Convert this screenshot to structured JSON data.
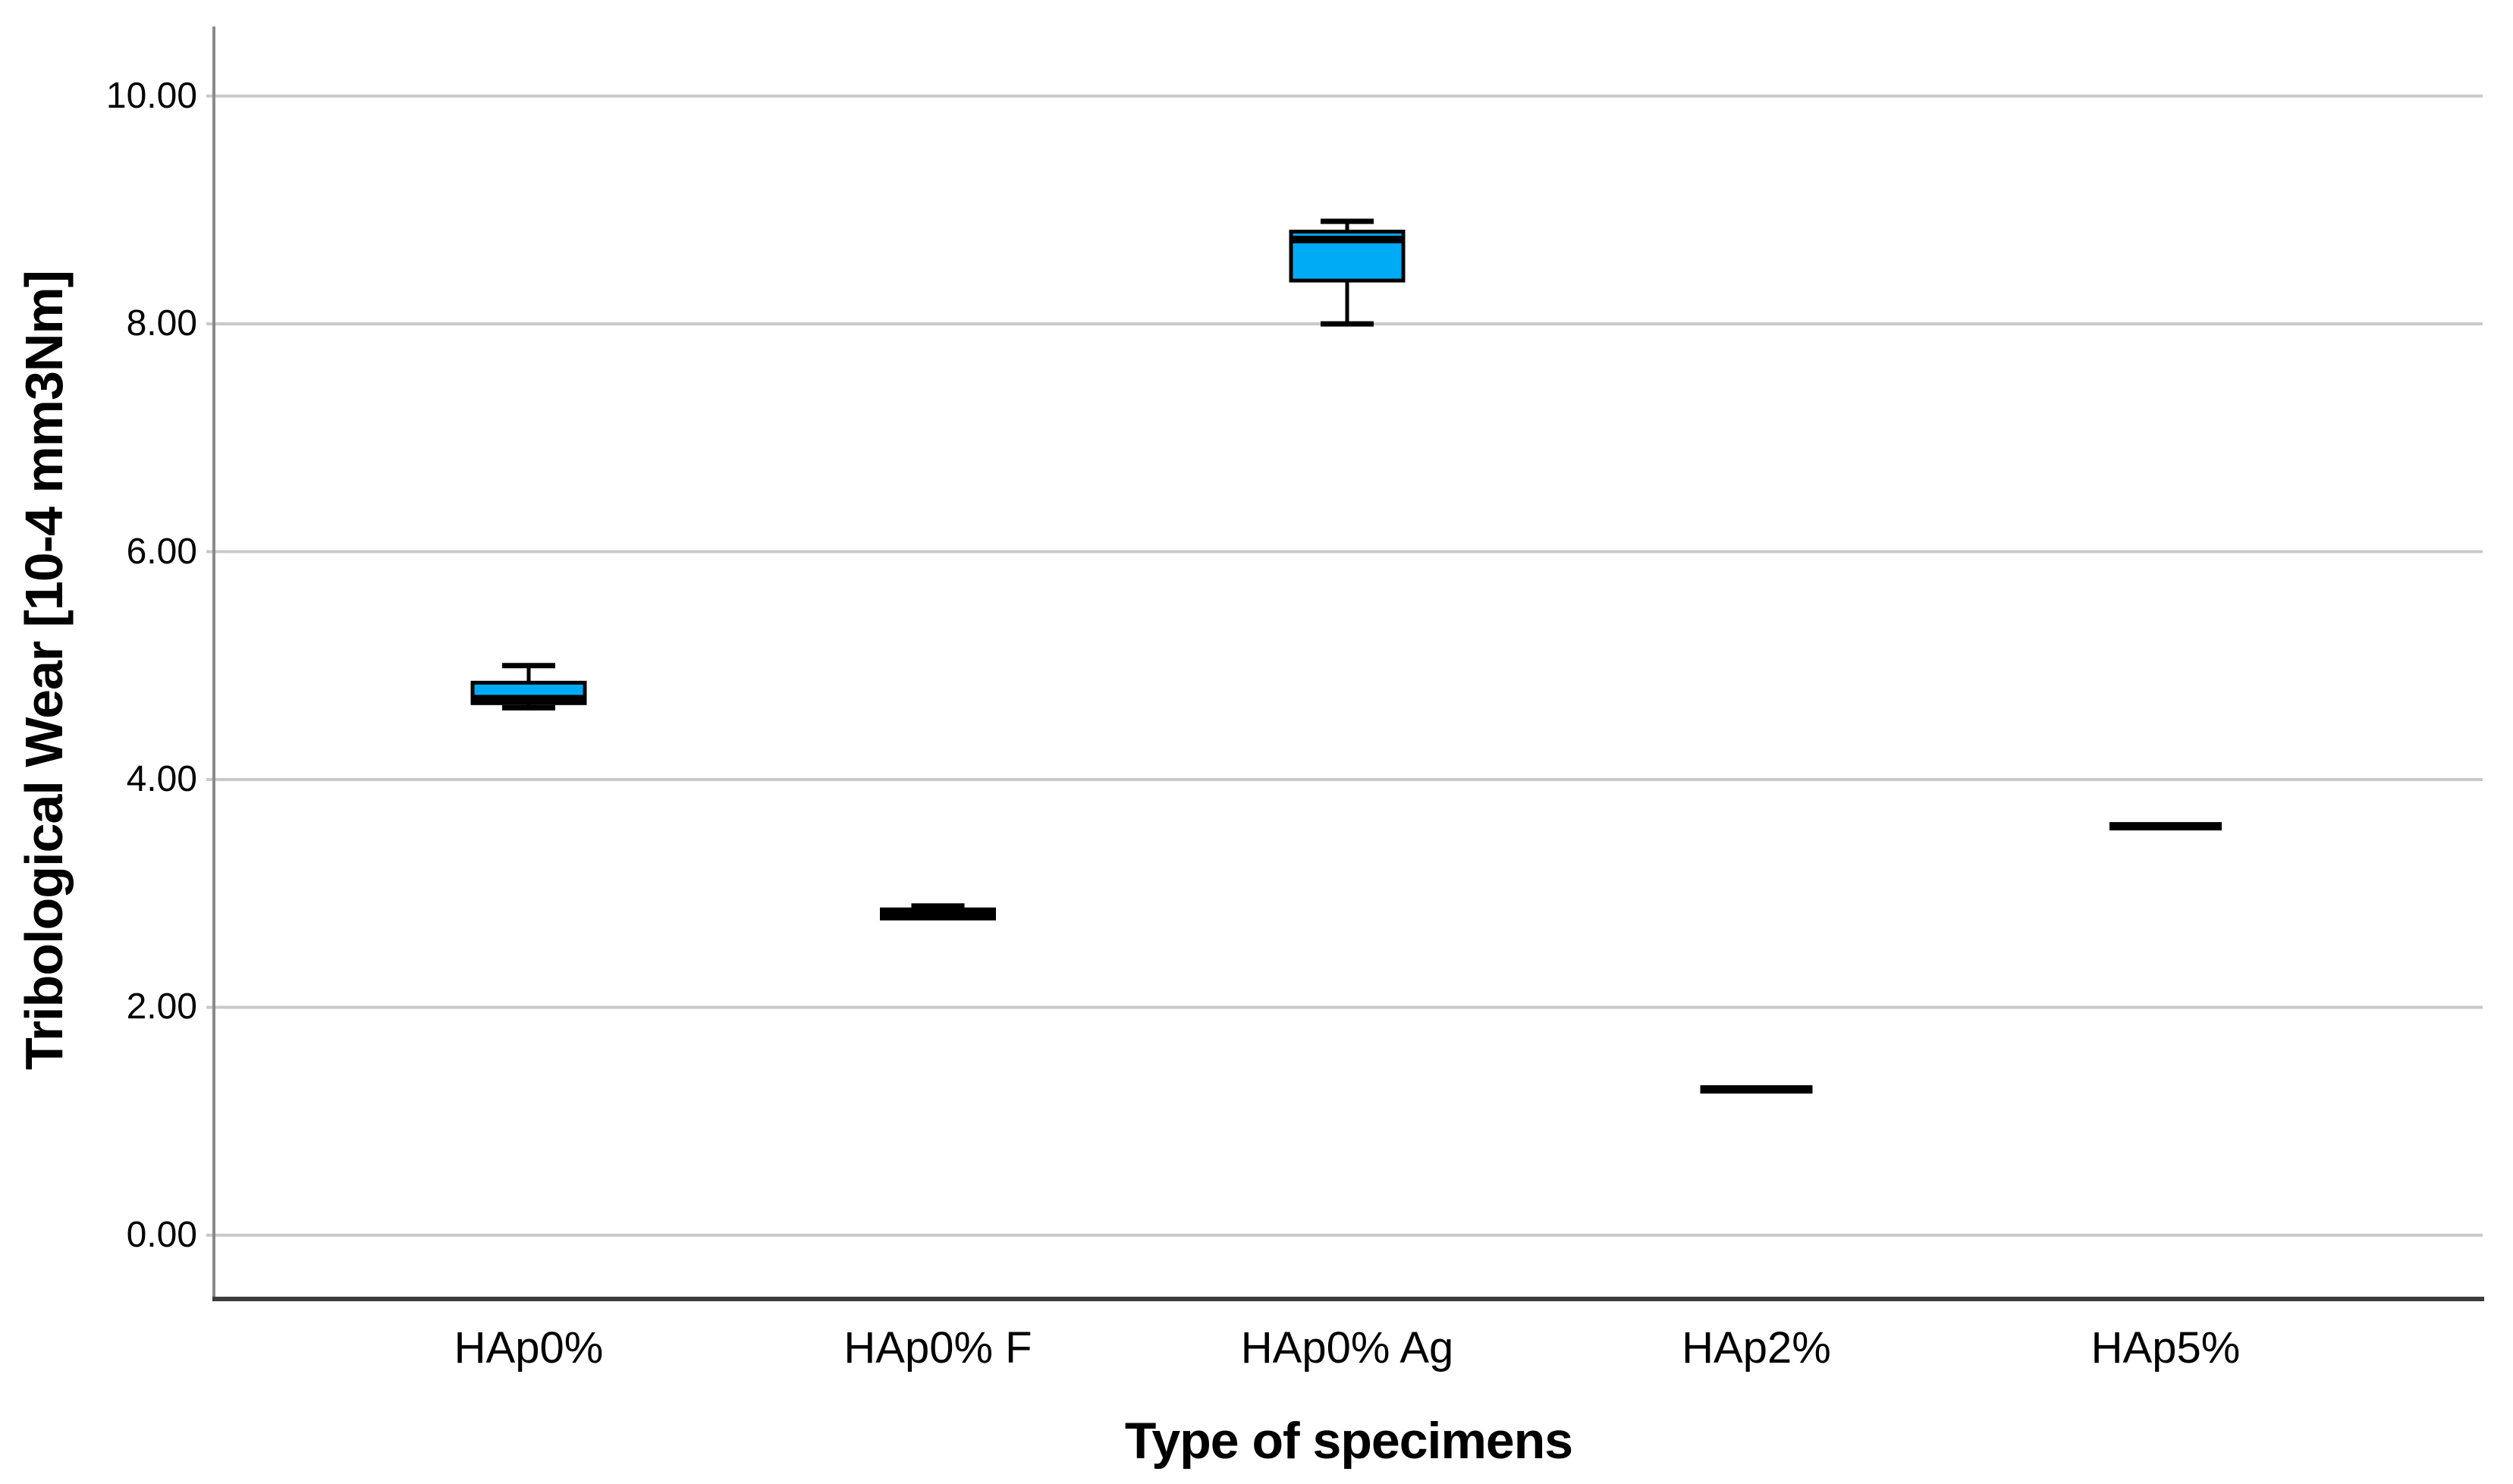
{
  "chart_data": {
    "type": "box",
    "title": "",
    "xlabel": "Type of specimens",
    "ylabel": "Tribological Wear [10-4 mm3Nm]",
    "categories": [
      "HAp0%",
      "HAp0% F",
      "HAp0% Ag",
      "HAp2%",
      "HAp5%"
    ],
    "ytick_labels": [
      "0.00",
      "2.00",
      "4.00",
      "6.00",
      "8.00",
      "10.00"
    ],
    "ytick_values": [
      0,
      2,
      4,
      6,
      8,
      10
    ],
    "ylim": [
      -0.56,
      10.61
    ],
    "grid": true,
    "legend": "none",
    "boxes": [
      {
        "category": "HAp0%",
        "q1": 4.67,
        "median": 4.71,
        "q3": 4.85,
        "whisker_low": 4.63,
        "whisker_high": 5.0
      },
      {
        "category": "HAp0% F",
        "q1": 2.78,
        "median": 2.82,
        "q3": 2.86,
        "whisker_low": null,
        "whisker_high": 2.89
      },
      {
        "category": "HAp0% Ag",
        "q1": 8.38,
        "median": 8.74,
        "q3": 8.81,
        "whisker_low": 8.0,
        "whisker_high": 8.9
      },
      {
        "category": "HAp2%",
        "q1": null,
        "median": 1.28,
        "q3": null,
        "whisker_low": null,
        "whisker_high": null
      },
      {
        "category": "HAp5%",
        "q1": null,
        "median": 3.59,
        "q3": null,
        "whisker_low": null,
        "whisker_high": null
      }
    ],
    "colors": {
      "box_fill": "#00ABF5",
      "box_stroke": "#000000",
      "median": "#000000",
      "whisker": "#000000",
      "grid": "#C9C9C9",
      "y_axis": "#8A8A8A",
      "x_axis": "#3D3D3D",
      "text": "#000000",
      "background": "#FFFFFF"
    }
  }
}
